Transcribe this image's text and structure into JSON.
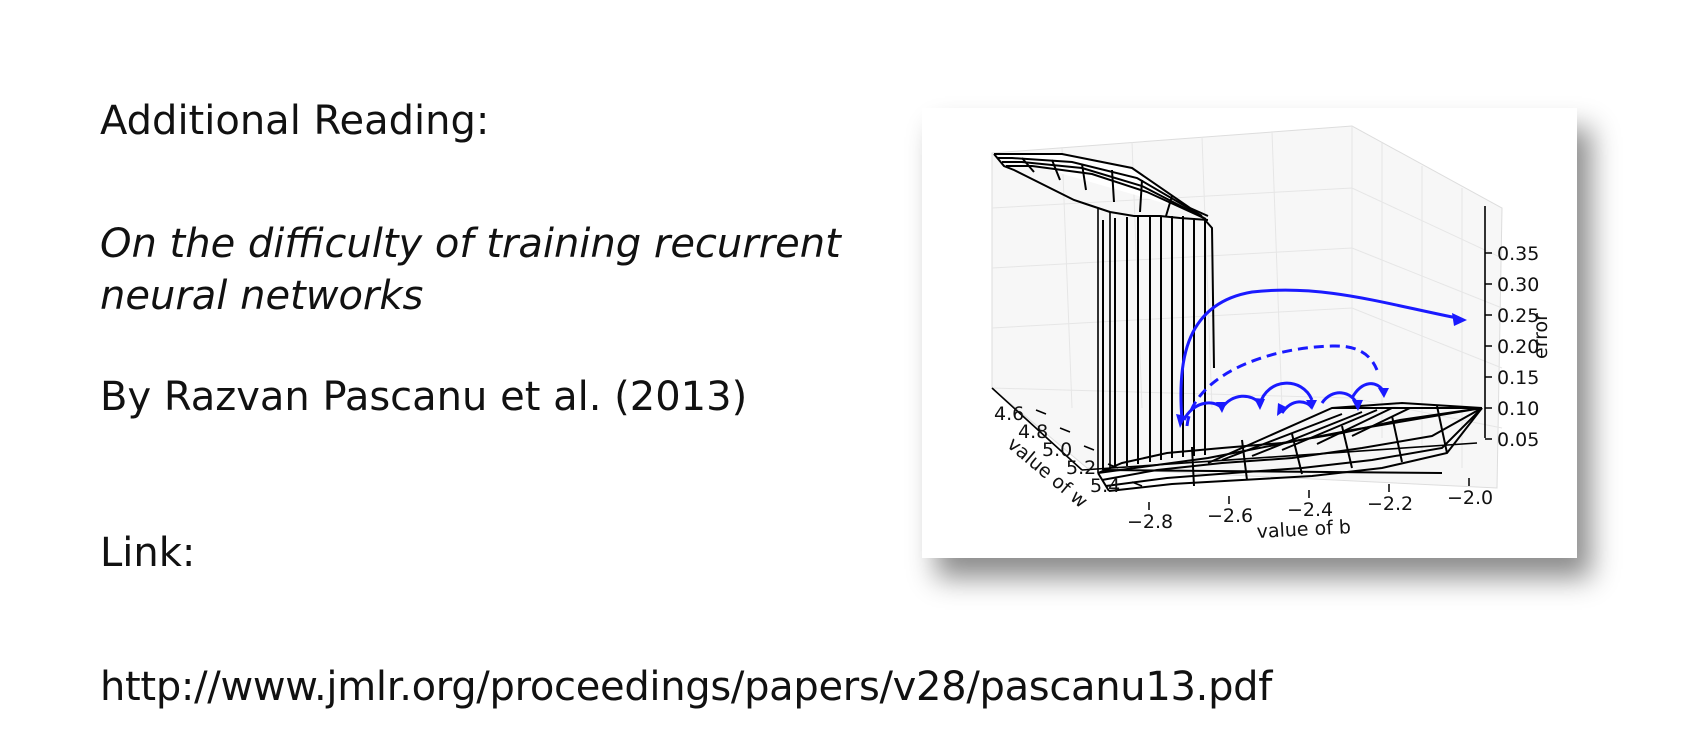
{
  "slide": {
    "heading": "Additional Reading:",
    "paper_title_line1": "On the difficulty of training recurrent",
    "paper_title_line2": "neural networks",
    "author_line": "By Razvan Pascanu et al. (2013)",
    "link_label": "Link:",
    "url": "http://www.jmlr.org/proceedings/papers/v28/pascanu13.pdf"
  },
  "figure": {
    "type": "3d-surface",
    "axes": {
      "w": {
        "label": "value of w",
        "ticks": [
          "4.6",
          "4.8",
          "5.0",
          "5.2",
          "5.4"
        ]
      },
      "b": {
        "label": "value of b",
        "ticks": [
          "−2.8",
          "−2.6",
          "−2.4",
          "−2.2",
          "−2.0"
        ]
      },
      "error": {
        "label": "error",
        "ticks": [
          "0.35",
          "0.30",
          "0.25",
          "0.20",
          "0.15",
          "0.10",
          "0.05"
        ]
      }
    },
    "trajectory_color": "#1a1aff",
    "surface_color": "#000000"
  }
}
